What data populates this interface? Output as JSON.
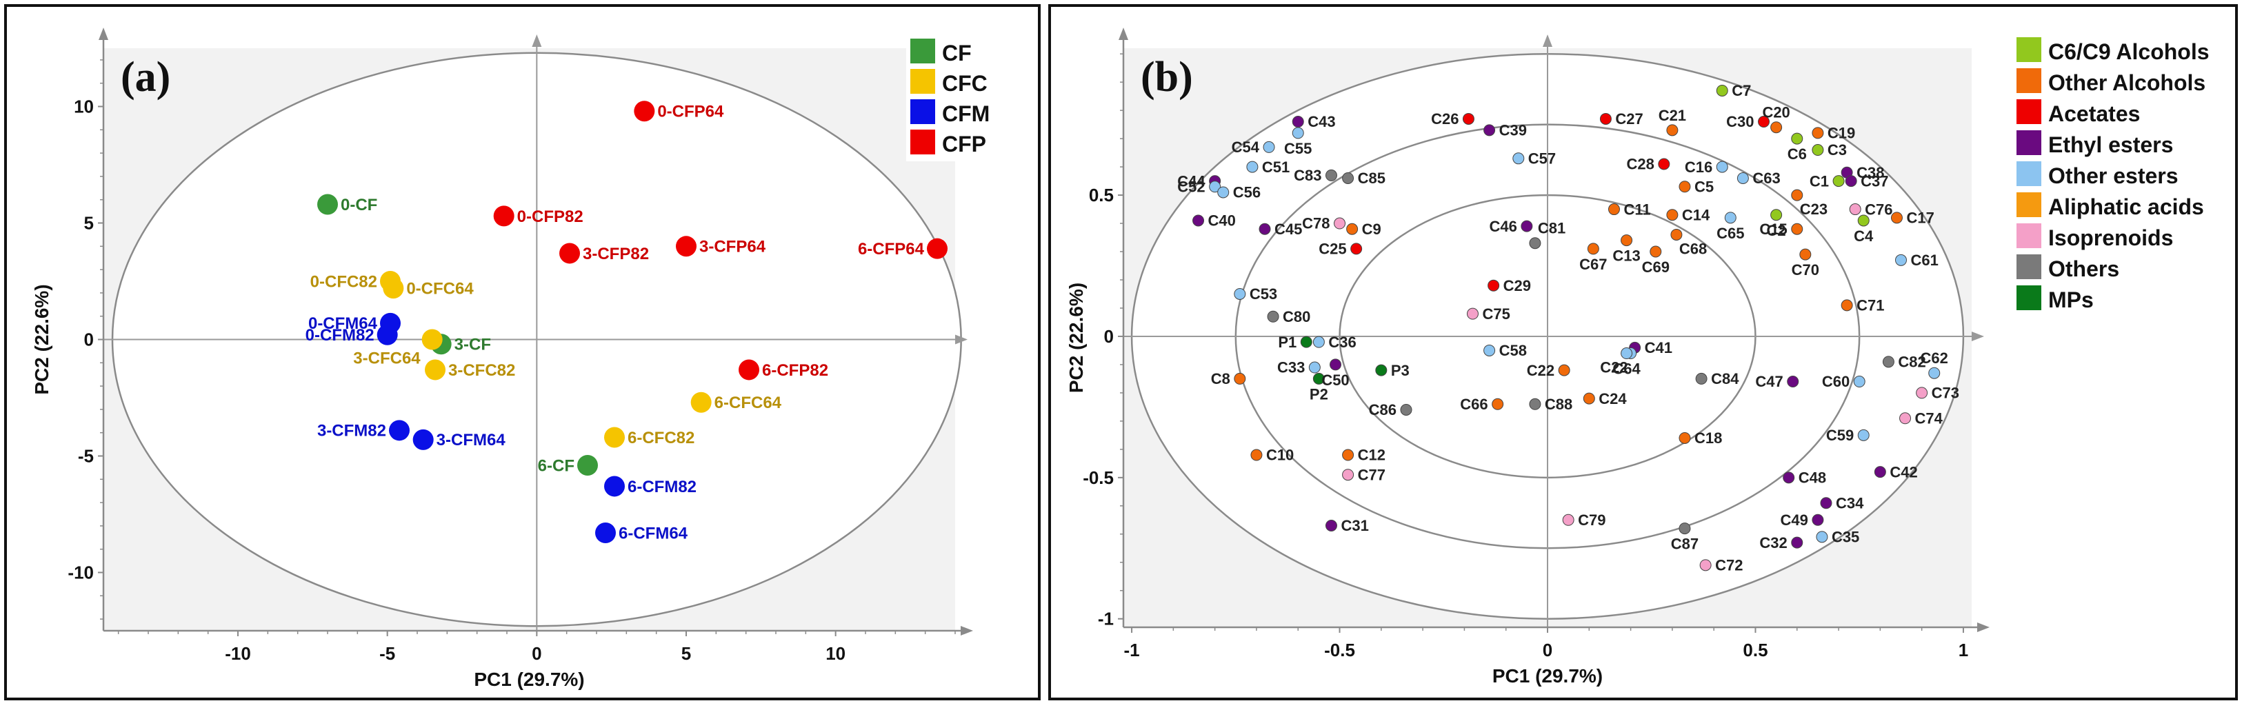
{
  "chart_data": [
    {
      "panel": "(a)",
      "type": "scatter",
      "xlabel": "PC1 (29.7%)",
      "ylabel": "PC2 (22.6%)",
      "xlim": [
        -14.5,
        14
      ],
      "ylim": [
        -12.5,
        12.5
      ],
      "xticks": [
        -10,
        -5,
        0,
        5,
        10
      ],
      "yticks": [
        -10,
        -5,
        0,
        5,
        10
      ],
      "legend": [
        {
          "name": "CF",
          "color": "#3a9a3a"
        },
        {
          "name": "CFC",
          "color": "#f5c400"
        },
        {
          "name": "CFM",
          "color": "#0a10e6"
        },
        {
          "name": "CFP",
          "color": "#ee0000"
        }
      ],
      "points": [
        {
          "label": "0-CFP64",
          "x": 3.6,
          "y": 9.8,
          "group": "CFP",
          "pos": "right"
        },
        {
          "label": "0-CF",
          "x": -7.0,
          "y": 5.8,
          "group": "CF",
          "pos": "right"
        },
        {
          "label": "0-CFP82",
          "x": -1.1,
          "y": 5.3,
          "group": "CFP",
          "pos": "right"
        },
        {
          "label": "3-CFP82",
          "x": 1.1,
          "y": 3.7,
          "group": "CFP",
          "pos": "right"
        },
        {
          "label": "3-CFP64",
          "x": 5.0,
          "y": 4.0,
          "group": "CFP",
          "pos": "right"
        },
        {
          "label": "6-CFP64",
          "x": 13.4,
          "y": 3.9,
          "group": "CFP",
          "pos": "left"
        },
        {
          "label": "0-CFC82",
          "x": -4.9,
          "y": 2.5,
          "group": "CFC",
          "pos": "left"
        },
        {
          "label": "0-CFC64",
          "x": -4.8,
          "y": 2.2,
          "group": "CFC",
          "pos": "right"
        },
        {
          "label": "0-CFM64",
          "x": -4.9,
          "y": 0.7,
          "group": "CFM",
          "pos": "left"
        },
        {
          "label": "0-CFM82",
          "x": -5.0,
          "y": 0.2,
          "group": "CFM",
          "pos": "left"
        },
        {
          "label": "3-CF",
          "x": -3.2,
          "y": -0.2,
          "group": "CF",
          "pos": "right"
        },
        {
          "label": "3-CFC64",
          "x": -3.5,
          "y": 0.0,
          "group": "CFC",
          "pos": "left-below"
        },
        {
          "label": "3-CFC82",
          "x": -3.4,
          "y": -1.3,
          "group": "CFC",
          "pos": "right"
        },
        {
          "label": "6-CFP82",
          "x": 7.1,
          "y": -1.3,
          "group": "CFP",
          "pos": "right"
        },
        {
          "label": "6-CFC64",
          "x": 5.5,
          "y": -2.7,
          "group": "CFC",
          "pos": "right"
        },
        {
          "label": "3-CFM82",
          "x": -4.6,
          "y": -3.9,
          "group": "CFM",
          "pos": "left"
        },
        {
          "label": "3-CFM64",
          "x": -3.8,
          "y": -4.3,
          "group": "CFM",
          "pos": "right"
        },
        {
          "label": "6-CFC82",
          "x": 2.6,
          "y": -4.2,
          "group": "CFC",
          "pos": "right"
        },
        {
          "label": "6-CF",
          "x": 1.7,
          "y": -5.4,
          "group": "CF",
          "pos": "left"
        },
        {
          "label": "6-CFM82",
          "x": 2.6,
          "y": -6.3,
          "group": "CFM",
          "pos": "right"
        },
        {
          "label": "6-CFM64",
          "x": 2.3,
          "y": -8.3,
          "group": "CFM",
          "pos": "right"
        }
      ]
    },
    {
      "panel": "(b)",
      "type": "scatter",
      "xlabel": "PC1 (29.7%)",
      "ylabel": "PC2 (22.6%)",
      "xlim": [
        -1.02,
        1.02
      ],
      "ylim": [
        -1.03,
        1.02
      ],
      "xticks": [
        -1,
        -0.5,
        0,
        0.5,
        1
      ],
      "yticks": [
        -1,
        -0.5,
        0,
        0.5
      ],
      "legend": [
        {
          "name": "C6/C9 Alcohols",
          "color": "#92c81e"
        },
        {
          "name": "Other Alcohols",
          "color": "#f06a0a"
        },
        {
          "name": "Acetates",
          "color": "#ee0000"
        },
        {
          "name": "Ethyl esters",
          "color": "#6a0a80"
        },
        {
          "name": "Other esters",
          "color": "#8cc4f0"
        },
        {
          "name": "Aliphatic acids",
          "color": "#f59a10"
        },
        {
          "name": "Isoprenoids",
          "color": "#f4a0c8"
        },
        {
          "name": "Others",
          "color": "#7a7a7a"
        },
        {
          "name": "MPs",
          "color": "#0a7a1a"
        }
      ],
      "points": [
        {
          "label": "C7",
          "x": 0.42,
          "y": 0.87,
          "group": "C6/C9 Alcohols",
          "pos": "right"
        },
        {
          "label": "C27",
          "x": 0.14,
          "y": 0.77,
          "group": "Acetates",
          "pos": "right"
        },
        {
          "label": "C21",
          "x": 0.3,
          "y": 0.73,
          "group": "Other Alcohols",
          "pos": "above"
        },
        {
          "label": "C30",
          "x": 0.52,
          "y": 0.76,
          "group": "Acetates",
          "pos": "left"
        },
        {
          "label": "C20",
          "x": 0.55,
          "y": 0.74,
          "group": "Other Alcohols",
          "pos": "above"
        },
        {
          "label": "C19",
          "x": 0.65,
          "y": 0.72,
          "group": "Other Alcohols",
          "pos": "right"
        },
        {
          "label": "C6",
          "x": 0.6,
          "y": 0.7,
          "group": "C6/C9 Alcohols",
          "pos": "below"
        },
        {
          "label": "C3",
          "x": 0.65,
          "y": 0.66,
          "group": "C6/C9 Alcohols",
          "pos": "right"
        },
        {
          "label": "C38",
          "x": 0.72,
          "y": 0.58,
          "group": "Ethyl esters",
          "pos": "right"
        },
        {
          "label": "C37",
          "x": 0.73,
          "y": 0.55,
          "group": "Ethyl esters",
          "pos": "right"
        },
        {
          "label": "C1",
          "x": 0.7,
          "y": 0.55,
          "group": "C6/C9 Alcohols",
          "pos": "left"
        },
        {
          "label": "C26",
          "x": -0.19,
          "y": 0.77,
          "group": "Acetates",
          "pos": "left"
        },
        {
          "label": "C39",
          "x": -0.14,
          "y": 0.73,
          "group": "Ethyl esters",
          "pos": "right"
        },
        {
          "label": "C43",
          "x": -0.6,
          "y": 0.76,
          "group": "Ethyl esters",
          "pos": "right"
        },
        {
          "label": "C54",
          "x": -0.67,
          "y": 0.67,
          "group": "Other esters",
          "pos": "left"
        },
        {
          "label": "C55",
          "x": -0.6,
          "y": 0.72,
          "group": "Other esters",
          "pos": "below"
        },
        {
          "label": "C51",
          "x": -0.71,
          "y": 0.6,
          "group": "Other esters",
          "pos": "right"
        },
        {
          "label": "C83",
          "x": -0.52,
          "y": 0.57,
          "group": "Others",
          "pos": "left"
        },
        {
          "label": "C85",
          "x": -0.48,
          "y": 0.56,
          "group": "Others",
          "pos": "right"
        },
        {
          "label": "C57",
          "x": -0.07,
          "y": 0.63,
          "group": "Other esters",
          "pos": "right"
        },
        {
          "label": "C44",
          "x": -0.8,
          "y": 0.55,
          "group": "Ethyl esters",
          "pos": "left"
        },
        {
          "label": "C52",
          "x": -0.8,
          "y": 0.53,
          "group": "Other esters",
          "pos": "left"
        },
        {
          "label": "C56",
          "x": -0.78,
          "y": 0.51,
          "group": "Other esters",
          "pos": "right"
        },
        {
          "label": "C28",
          "x": 0.28,
          "y": 0.61,
          "group": "Acetates",
          "pos": "left"
        },
        {
          "label": "C16",
          "x": 0.42,
          "y": 0.6,
          "group": "Other esters",
          "pos": "left"
        },
        {
          "label": "C63",
          "x": 0.47,
          "y": 0.56,
          "group": "Other esters",
          "pos": "right"
        },
        {
          "label": "C5",
          "x": 0.33,
          "y": 0.53,
          "group": "Other Alcohols",
          "pos": "right"
        },
        {
          "label": "C23",
          "x": 0.6,
          "y": 0.5,
          "group": "Other Alcohols",
          "pos": "below-right"
        },
        {
          "label": "C76",
          "x": 0.74,
          "y": 0.45,
          "group": "Isoprenoids",
          "pos": "right"
        },
        {
          "label": "C17",
          "x": 0.84,
          "y": 0.42,
          "group": "Other Alcohols",
          "pos": "right"
        },
        {
          "label": "C40",
          "x": -0.84,
          "y": 0.41,
          "group": "Ethyl esters",
          "pos": "right"
        },
        {
          "label": "C45",
          "x": -0.68,
          "y": 0.38,
          "group": "Ethyl esters",
          "pos": "right"
        },
        {
          "label": "C78",
          "x": -0.5,
          "y": 0.4,
          "group": "Isoprenoids",
          "pos": "left"
        },
        {
          "label": "C9",
          "x": -0.47,
          "y": 0.38,
          "group": "Other Alcohols",
          "pos": "right"
        },
        {
          "label": "C46",
          "x": -0.05,
          "y": 0.39,
          "group": "Ethyl esters",
          "pos": "left"
        },
        {
          "label": "C81",
          "x": -0.03,
          "y": 0.33,
          "group": "Others",
          "pos": "above-right"
        },
        {
          "label": "C11",
          "x": 0.16,
          "y": 0.45,
          "group": "Other Alcohols",
          "pos": "right"
        },
        {
          "label": "C14",
          "x": 0.3,
          "y": 0.43,
          "group": "Other Alcohols",
          "pos": "right"
        },
        {
          "label": "C65",
          "x": 0.44,
          "y": 0.42,
          "group": "Other esters",
          "pos": "below"
        },
        {
          "label": "C2",
          "x": 0.55,
          "y": 0.43,
          "group": "C6/C9 Alcohols",
          "pos": "below"
        },
        {
          "label": "C15",
          "x": 0.6,
          "y": 0.38,
          "group": "Other Alcohols",
          "pos": "left"
        },
        {
          "label": "C4",
          "x": 0.76,
          "y": 0.41,
          "group": "C6/C9 Alcohols",
          "pos": "below"
        },
        {
          "label": "C25",
          "x": -0.46,
          "y": 0.31,
          "group": "Acetates",
          "pos": "left"
        },
        {
          "label": "C13",
          "x": 0.19,
          "y": 0.34,
          "group": "Other Alcohols",
          "pos": "below"
        },
        {
          "label": "C68",
          "x": 0.31,
          "y": 0.36,
          "group": "Other Alcohols",
          "pos": "below-right"
        },
        {
          "label": "C67",
          "x": 0.11,
          "y": 0.31,
          "group": "Other Alcohols",
          "pos": "below"
        },
        {
          "label": "C69",
          "x": 0.26,
          "y": 0.3,
          "group": "Other Alcohols",
          "pos": "below"
        },
        {
          "label": "C70",
          "x": 0.62,
          "y": 0.29,
          "group": "Other Alcohols",
          "pos": "below"
        },
        {
          "label": "C61",
          "x": 0.85,
          "y": 0.27,
          "group": "Other esters",
          "pos": "right"
        },
        {
          "label": "C29",
          "x": -0.13,
          "y": 0.18,
          "group": "Acetates",
          "pos": "right"
        },
        {
          "label": "C53",
          "x": -0.74,
          "y": 0.15,
          "group": "Other esters",
          "pos": "right"
        },
        {
          "label": "C71",
          "x": 0.72,
          "y": 0.11,
          "group": "Other Alcohols",
          "pos": "right"
        },
        {
          "label": "C75",
          "x": -0.18,
          "y": 0.08,
          "group": "Isoprenoids",
          "pos": "right"
        },
        {
          "label": "C80",
          "x": -0.66,
          "y": 0.07,
          "group": "Others",
          "pos": "right"
        },
        {
          "label": "P1",
          "x": -0.58,
          "y": -0.02,
          "group": "MPs",
          "pos": "left"
        },
        {
          "label": "C36",
          "x": -0.55,
          "y": -0.02,
          "group": "Other esters",
          "pos": "right"
        },
        {
          "label": "C58",
          "x": -0.14,
          "y": -0.05,
          "group": "Other esters",
          "pos": "right"
        },
        {
          "label": "C41",
          "x": 0.21,
          "y": -0.04,
          "group": "Ethyl esters",
          "pos": "right"
        },
        {
          "label": "C22",
          "x": 0.2,
          "y": -0.06,
          "group": "Other esters",
          "pos": "below-left"
        },
        {
          "label": "C64",
          "x": 0.19,
          "y": -0.06,
          "group": "Other esters",
          "pos": "below"
        },
        {
          "label": "C82",
          "x": 0.82,
          "y": -0.09,
          "group": "Others",
          "pos": "right"
        },
        {
          "label": "C62",
          "x": 0.93,
          "y": -0.13,
          "group": "Other esters",
          "pos": "above"
        },
        {
          "label": "C33",
          "x": -0.56,
          "y": -0.11,
          "group": "Other esters",
          "pos": "left"
        },
        {
          "label": "C50",
          "x": -0.51,
          "y": -0.1,
          "group": "Ethyl esters",
          "pos": "below"
        },
        {
          "label": "P3",
          "x": -0.4,
          "y": -0.12,
          "group": "MPs",
          "pos": "right"
        },
        {
          "label": "P2",
          "x": -0.55,
          "y": -0.15,
          "group": "MPs",
          "pos": "below"
        },
        {
          "label": "C8",
          "x": -0.74,
          "y": -0.15,
          "group": "Other Alcohols",
          "pos": "left"
        },
        {
          "label": "C22",
          "x": 0.04,
          "y": -0.12,
          "group": "Other Alcohols",
          "pos": "left"
        },
        {
          "label": "C84",
          "x": 0.37,
          "y": -0.15,
          "group": "Others",
          "pos": "right"
        },
        {
          "label": "C47",
          "x": 0.59,
          "y": -0.16,
          "group": "Ethyl esters",
          "pos": "left"
        },
        {
          "label": "C60",
          "x": 0.75,
          "y": -0.16,
          "group": "Other esters",
          "pos": "left"
        },
        {
          "label": "C73",
          "x": 0.9,
          "y": -0.2,
          "group": "Isoprenoids",
          "pos": "right"
        },
        {
          "label": "C86",
          "x": -0.34,
          "y": -0.26,
          "group": "Others",
          "pos": "left"
        },
        {
          "label": "C66",
          "x": -0.12,
          "y": -0.24,
          "group": "Other Alcohols",
          "pos": "left"
        },
        {
          "label": "C88",
          "x": -0.03,
          "y": -0.24,
          "group": "Others",
          "pos": "right"
        },
        {
          "label": "C24",
          "x": 0.1,
          "y": -0.22,
          "group": "Other Alcohols",
          "pos": "right"
        },
        {
          "label": "C74",
          "x": 0.86,
          "y": -0.29,
          "group": "Isoprenoids",
          "pos": "right"
        },
        {
          "label": "C59",
          "x": 0.76,
          "y": -0.35,
          "group": "Other esters",
          "pos": "left"
        },
        {
          "label": "C18",
          "x": 0.33,
          "y": -0.36,
          "group": "Other Alcohols",
          "pos": "right"
        },
        {
          "label": "C10",
          "x": -0.7,
          "y": -0.42,
          "group": "Other Alcohols",
          "pos": "right"
        },
        {
          "label": "C12",
          "x": -0.48,
          "y": -0.42,
          "group": "Other Alcohols",
          "pos": "right"
        },
        {
          "label": "C77",
          "x": -0.48,
          "y": -0.49,
          "group": "Isoprenoids",
          "pos": "right"
        },
        {
          "label": "C42",
          "x": 0.8,
          "y": -0.48,
          "group": "Ethyl esters",
          "pos": "right"
        },
        {
          "label": "C48",
          "x": 0.58,
          "y": -0.5,
          "group": "Ethyl esters",
          "pos": "right"
        },
        {
          "label": "C34",
          "x": 0.67,
          "y": -0.59,
          "group": "Ethyl esters",
          "pos": "right"
        },
        {
          "label": "C49",
          "x": 0.65,
          "y": -0.65,
          "group": "Ethyl esters",
          "pos": "left"
        },
        {
          "label": "C31",
          "x": -0.52,
          "y": -0.67,
          "group": "Ethyl esters",
          "pos": "right"
        },
        {
          "label": "C79",
          "x": 0.05,
          "y": -0.65,
          "group": "Isoprenoids",
          "pos": "right"
        },
        {
          "label": "C87",
          "x": 0.33,
          "y": -0.68,
          "group": "Others",
          "pos": "below"
        },
        {
          "label": "C32",
          "x": 0.6,
          "y": -0.73,
          "group": "Ethyl esters",
          "pos": "left"
        },
        {
          "label": "C35",
          "x": 0.66,
          "y": -0.71,
          "group": "Other esters",
          "pos": "right"
        },
        {
          "label": "C72",
          "x": 0.38,
          "y": -0.81,
          "group": "Isoprenoids",
          "pos": "right"
        }
      ]
    }
  ]
}
